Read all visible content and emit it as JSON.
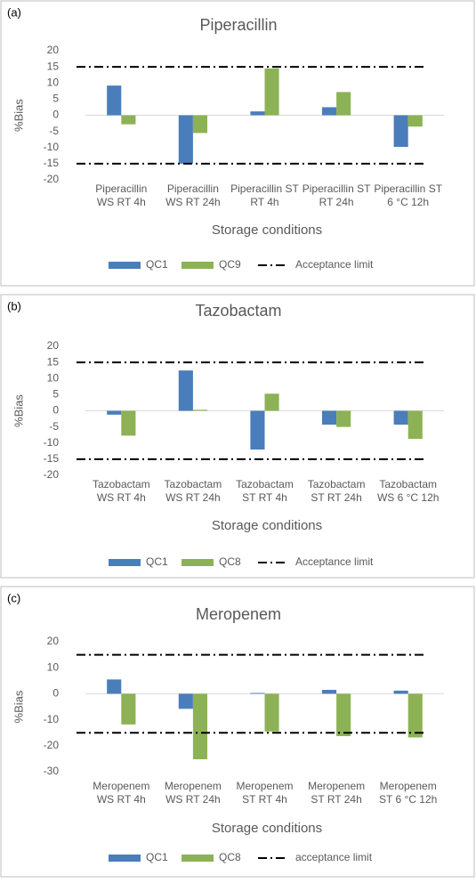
{
  "chart_data": [
    {
      "type": "bar",
      "panel_label": "(a)",
      "title": "Piperacillin",
      "xlabel": "Storage conditions",
      "ylabel": "%Bias",
      "categories": [
        "Piperacillin WS RT 4h",
        "Piperacillin WS RT 24h",
        "Piperacillin ST RT 4h",
        "Piperacillin ST RT 24h",
        "Piperacillin ST 6 °C 12h"
      ],
      "series": [
        {
          "name": "QC1",
          "color": "#4a7ebb",
          "values": [
            9.2,
            -15,
            1.2,
            2.5,
            -9.8
          ]
        },
        {
          "name": "QC9",
          "color": "#8db255",
          "values": [
            -2.8,
            -5.5,
            14.5,
            7.2,
            -3.5
          ]
        }
      ],
      "acceptance_limit": {
        "name": "Acceptance limit",
        "color": "#000000",
        "values": [
          15,
          -15
        ]
      },
      "ylim": [
        -20,
        20
      ],
      "yticks": [
        20,
        15,
        10,
        5,
        0,
        -5,
        -10,
        -15,
        -20
      ]
    },
    {
      "type": "bar",
      "panel_label": "(b)",
      "title": "Tazobactam",
      "xlabel": "Storage conditions",
      "ylabel": "%Bias",
      "categories": [
        "Tazobactam WS RT 4h",
        "Tazobactam WS RT 24h",
        "Tazobactam ST RT 4h",
        "Tazobactam ST RT 24h",
        "Tazobactam WS 6 °C 12h"
      ],
      "series": [
        {
          "name": "QC1",
          "color": "#4a7ebb",
          "values": [
            -1.2,
            12.5,
            -12,
            -4.3,
            -4.3
          ]
        },
        {
          "name": "QC8",
          "color": "#8db255",
          "values": [
            -7.7,
            0.3,
            5.3,
            -5,
            -8.7
          ]
        }
      ],
      "acceptance_limit": {
        "name": "Acceptance limit",
        "color": "#000000",
        "values": [
          15,
          -15
        ]
      },
      "ylim": [
        -20,
        20
      ],
      "yticks": [
        20,
        15,
        10,
        5,
        0,
        -5,
        -10,
        -15,
        -20
      ]
    },
    {
      "type": "bar",
      "panel_label": "(c)",
      "title": "Meropenem",
      "xlabel": "Storage conditions",
      "ylabel": "%Bias",
      "categories": [
        "Meropenem WS RT 4h",
        "Meropenem WS RT 24h",
        "Meropenem ST RT 4h",
        "Meropenem ST RT 24h",
        "Meropenem ST 6 °C 12h"
      ],
      "series": [
        {
          "name": "QC1",
          "color": "#4a7ebb",
          "values": [
            5.5,
            -5.8,
            0.3,
            1.5,
            1.2
          ]
        },
        {
          "name": "QC8",
          "color": "#8db255",
          "values": [
            -11.8,
            -25.2,
            -14.5,
            -16.3,
            -16.8
          ]
        }
      ],
      "acceptance_limit": {
        "name": "acceptance limit",
        "color": "#000000",
        "values": [
          15,
          -15
        ]
      },
      "ylim": [
        -30,
        20
      ],
      "yticks": [
        20,
        10,
        0,
        -10,
        -20,
        -30
      ]
    }
  ]
}
